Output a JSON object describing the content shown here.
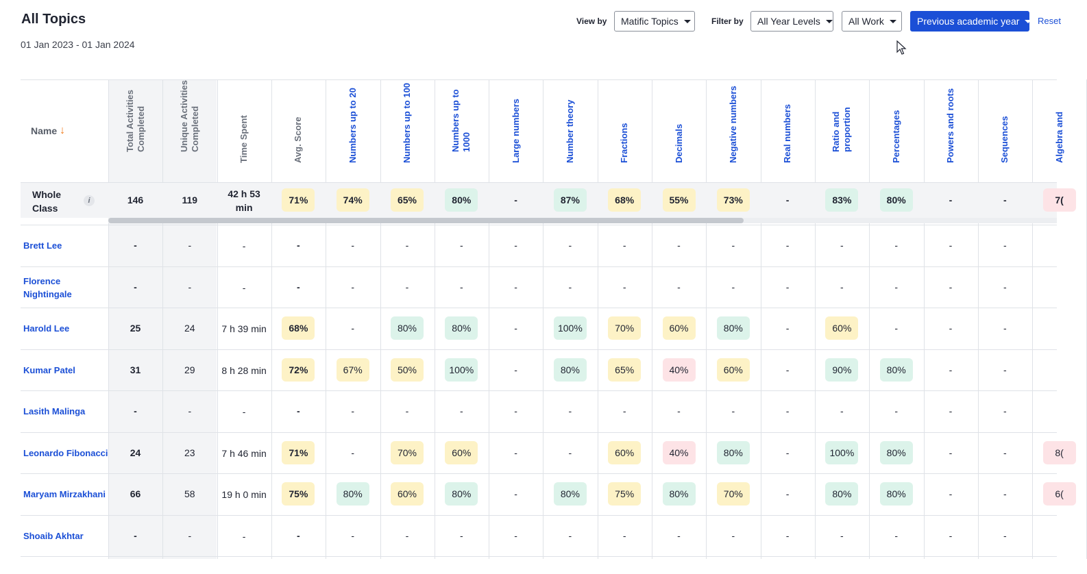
{
  "header": {
    "title": "All Topics",
    "date_range": "01 Jan 2023 - 01 Jan 2024"
  },
  "controls": {
    "view_by_label": "View by",
    "view_by_value": "Matific Topics",
    "filter_by_label": "Filter by",
    "year_filter": "All Year Levels",
    "work_filter": "All Work",
    "period_filter": "Previous academic year",
    "reset_label": "Reset"
  },
  "colors": {
    "accent": "#1b4fd6",
    "sort_arrow": "#f07a1a",
    "score_high": "#dcf3ea",
    "score_mid": "#fdf2c6",
    "score_low": "#fde3e6"
  },
  "table": {
    "name_header": "Name",
    "sort_icon": "arrow-down-icon",
    "stat_headers": [
      "Total Activities\nCompleted",
      "Unique Activities\nCompleted",
      "Time Spent",
      "Avg. Score"
    ],
    "topic_headers": [
      "Numbers up to 20",
      "Numbers up to 100",
      "Numbers up to\n1000",
      "Large numbers",
      "Number theory",
      "Fractions",
      "Decimals",
      "Negative numbers",
      "Real numbers",
      "Ratio and\nproportion",
      "Percentages",
      "Powers and roots",
      "Sequences",
      "Algebra and"
    ],
    "whole_class": {
      "label": "Whole Class",
      "info_icon": "info-icon",
      "stats": [
        "146",
        "119",
        "42 h 53 min",
        "71%"
      ],
      "topics": [
        "74%",
        "65%",
        "80%",
        "-",
        "87%",
        "68%",
        "55%",
        "73%",
        "-",
        "83%",
        "80%",
        "-",
        "-",
        "7("
      ]
    },
    "rows": [
      {
        "name": "Brett Lee",
        "stats": [
          "-",
          "-",
          "-",
          "-"
        ],
        "topics": [
          "-",
          "-",
          "-",
          "-",
          "-",
          "-",
          "-",
          "-",
          "-",
          "-",
          "-",
          "-",
          "-",
          ""
        ]
      },
      {
        "name": "Florence Nightingale",
        "stats": [
          "-",
          "-",
          "-",
          "-"
        ],
        "topics": [
          "-",
          "-",
          "-",
          "-",
          "-",
          "-",
          "-",
          "-",
          "-",
          "-",
          "-",
          "-",
          "-",
          ""
        ]
      },
      {
        "name": "Harold Lee",
        "stats": [
          "25",
          "24",
          "7 h 39 min",
          "68%"
        ],
        "topics": [
          "-",
          "80%",
          "80%",
          "-",
          "100%",
          "70%",
          "60%",
          "80%",
          "-",
          "60%",
          "-",
          "-",
          "-",
          ""
        ]
      },
      {
        "name": "Kumar Patel",
        "stats": [
          "31",
          "29",
          "8 h 28 min",
          "72%"
        ],
        "topics": [
          "67%",
          "50%",
          "100%",
          "-",
          "80%",
          "65%",
          "40%",
          "60%",
          "-",
          "90%",
          "80%",
          "-",
          "-",
          ""
        ]
      },
      {
        "name": "Lasith Malinga",
        "stats": [
          "-",
          "-",
          "-",
          "-"
        ],
        "topics": [
          "-",
          "-",
          "-",
          "-",
          "-",
          "-",
          "-",
          "-",
          "-",
          "-",
          "-",
          "-",
          "-",
          ""
        ]
      },
      {
        "name": "Leonardo Fibonacci",
        "stats": [
          "24",
          "23",
          "7 h 46 min",
          "71%"
        ],
        "topics": [
          "-",
          "70%",
          "60%",
          "-",
          "-",
          "60%",
          "40%",
          "80%",
          "-",
          "100%",
          "80%",
          "-",
          "-",
          "8("
        ]
      },
      {
        "name": "Maryam Mirzakhani",
        "stats": [
          "66",
          "58",
          "19 h 0 min",
          "75%"
        ],
        "topics": [
          "80%",
          "60%",
          "80%",
          "-",
          "80%",
          "75%",
          "80%",
          "70%",
          "-",
          "80%",
          "80%",
          "-",
          "-",
          "6("
        ]
      },
      {
        "name": "Shoaib Akhtar",
        "stats": [
          "-",
          "-",
          "-",
          "-"
        ],
        "topics": [
          "-",
          "-",
          "-",
          "-",
          "-",
          "-",
          "-",
          "-",
          "-",
          "-",
          "-",
          "-",
          "-",
          ""
        ]
      }
    ]
  }
}
